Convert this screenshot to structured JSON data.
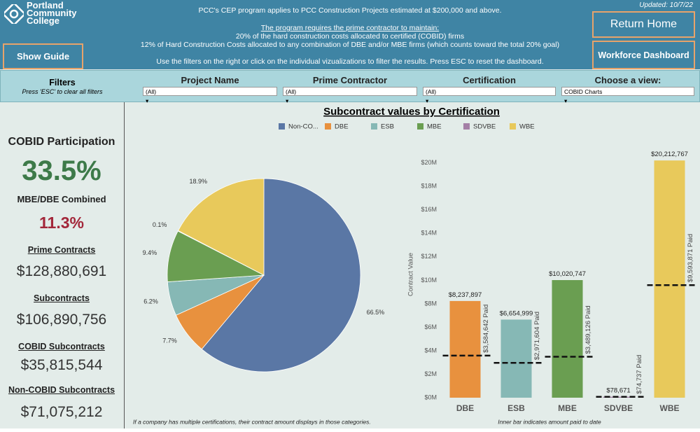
{
  "header": {
    "logo": [
      "Portland",
      "Community",
      "College"
    ],
    "intro": "PCC's CEP program applies to PCC Construction Projects estimated at $200,000 and above.",
    "requirement_title": "The program requires the prime contractor to maintain:",
    "requirements": [
      "20% of the hard construction costs allocated to certified (COBID) firms",
      "12% of Hard Construction Costs allocated to any combination of DBE and/or MBE firms (which counts toward the total 20% goal)"
    ],
    "instructions": "Use the filters on the right or click on the individual vizualizations to filter the results. Press ESC to reset the dashboard.",
    "updated": "Updated: 10/7/22",
    "buttons": {
      "show_guide": "Show Guide",
      "return_home": "Return Home",
      "workforce": "Workforce Dashboard"
    }
  },
  "filters": {
    "title": "Filters",
    "hint": "Press 'ESC' to clear all filters",
    "dropdowns": [
      {
        "label": "Project Name",
        "value": "(All)"
      },
      {
        "label": "Prime Contractor",
        "value": "(All)"
      },
      {
        "label": "Certification",
        "value": "(All)"
      },
      {
        "label": "Choose a view:",
        "value": "COBID Charts"
      }
    ]
  },
  "kpis": [
    {
      "label": "COBID Participation",
      "value": "33.5%"
    },
    {
      "label": "MBE/DBE Combined",
      "value": "11.3%"
    },
    {
      "label": "Prime Contracts",
      "value": "$128,880,691"
    },
    {
      "label": "Subcontracts",
      "value": "$106,890,756"
    },
    {
      "label": "COBID Subcontracts",
      "value": "$35,815,544"
    },
    {
      "label": "Non-COBID Subcontracts",
      "value": "$71,075,212"
    }
  ],
  "chart_data": [
    {
      "type": "pie",
      "title": "Subcontract values by Certification",
      "categories": [
        "Non-CO...",
        "DBE",
        "ESB",
        "MBE",
        "SDVBE",
        "WBE"
      ],
      "values": [
        66.5,
        7.7,
        6.2,
        9.4,
        0.1,
        18.9
      ],
      "value_labels": [
        "66.5%",
        "7.7%",
        "6.2%",
        "9.4%",
        "0.1%",
        "18.9%"
      ],
      "colors": [
        "#5a77a5",
        "#e8913e",
        "#86b8b5",
        "#6a9e51",
        "#a47fa6",
        "#e8c95b"
      ],
      "note": "If a company has multiple certifications, their contract amount displays in those categories."
    },
    {
      "type": "bar",
      "y_label": "Contract Value",
      "categories": [
        "DBE",
        "ESB",
        "MBE",
        "SDVBE",
        "WBE"
      ],
      "colors": [
        "#e8913e",
        "#86b8b5",
        "#6a9e51",
        "#a47fa6",
        "#e8c95b"
      ],
      "series": [
        {
          "values": [
            8237897,
            6654999,
            10020747,
            78671,
            20212767
          ],
          "value_labels": [
            "$8,237,897",
            "$6,654,999",
            "$10,020,747",
            "$78,671",
            "$20,212,767"
          ]
        },
        {
          "values": [
            3584642,
            2971604,
            3489126,
            74737,
            9593871
          ],
          "value_labels": [
            "$3,584,642 Paid",
            "$2,971,604 Paid",
            "$3,489,126 Paid",
            "$74,737 Paid",
            "$9,593,871 Paid"
          ]
        }
      ],
      "ylim": [
        0,
        21000000
      ],
      "yticks": [
        {
          "value": 0,
          "label": "$0M"
        },
        {
          "value": 2000000,
          "label": "$2M"
        },
        {
          "value": 4000000,
          "label": "$4M"
        },
        {
          "value": 6000000,
          "label": "$6M"
        },
        {
          "value": 8000000,
          "label": "$8M"
        },
        {
          "value": 10000000,
          "label": "$10M"
        },
        {
          "value": 12000000,
          "label": "$12M"
        },
        {
          "value": 14000000,
          "label": "$14M"
        },
        {
          "value": 16000000,
          "label": "$16M"
        },
        {
          "value": 18000000,
          "label": "$18M"
        },
        {
          "value": 20000000,
          "label": "$20M"
        }
      ],
      "grid": false,
      "note": "Inner bar indicates amount paid to date"
    }
  ]
}
